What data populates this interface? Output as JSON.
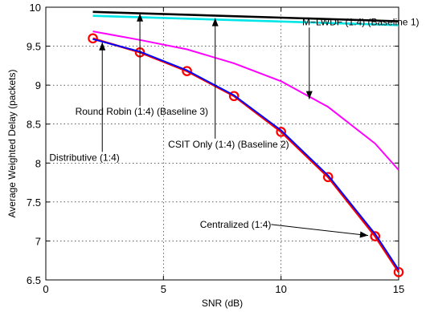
{
  "chart_data": {
    "type": "line",
    "title": "",
    "xlabel": "SNR (dB)",
    "ylabel": "Average Weighted  Delay (packets)",
    "xlim": [
      0,
      15
    ],
    "ylim": [
      6.5,
      10
    ],
    "xticks": [
      0,
      5,
      10,
      15
    ],
    "yticks": [
      6.5,
      7,
      7.5,
      8,
      8.5,
      9,
      9.5,
      10
    ],
    "grid": true,
    "series": [
      {
        "name": "M−LWDF (1:4) (Baseline 1)",
        "color": "#ff00ff",
        "x": [
          2,
          4,
          6,
          8,
          10,
          12,
          14,
          15
        ],
        "y": [
          9.69,
          9.58,
          9.46,
          9.28,
          9.05,
          8.72,
          8.25,
          7.91
        ]
      },
      {
        "name": "Round Robin (1:4) (Baseline 3)",
        "color": "#000000",
        "x": [
          2,
          15
        ],
        "y": [
          9.94,
          9.82
        ]
      },
      {
        "name": "CSIT Only (1:4) (Baseline 2)",
        "color": "#00e5e5",
        "x": [
          2,
          15
        ],
        "y": [
          9.89,
          9.77
        ]
      },
      {
        "name": "Centralized (1:4)",
        "color": "#ff0000",
        "marker": "circle",
        "x": [
          2,
          4,
          6,
          8,
          10,
          12,
          14,
          15
        ],
        "y": [
          9.6,
          9.42,
          9.18,
          8.86,
          8.4,
          7.82,
          7.06,
          6.6
        ]
      },
      {
        "name": "Distributive (1:4)",
        "color": "#0000ff",
        "x": [
          2,
          4,
          6,
          8,
          10,
          12,
          14,
          15
        ],
        "y": [
          9.59,
          9.43,
          9.19,
          8.87,
          8.42,
          7.84,
          7.09,
          6.63
        ]
      }
    ],
    "annotations": [
      {
        "text": "M−LWDF (1:4) (Baseline 1)",
        "label_at": [
          10.9,
          9.77
        ],
        "arrow_to": [
          11.2,
          8.82
        ]
      },
      {
        "text": "Round Robin (1:4) (Baseline 3)",
        "label_at": [
          1.25,
          8.62
        ],
        "arrow_to": [
          4.0,
          9.92
        ]
      },
      {
        "text": "CSIT Only (1:4) (Baseline 2)",
        "label_at": [
          5.2,
          8.2
        ],
        "arrow_to": [
          7.2,
          9.86
        ]
      },
      {
        "text": "Distributive (1:4)",
        "label_at": [
          0.15,
          8.03
        ],
        "arrow_to": [
          2.4,
          9.55
        ]
      },
      {
        "text": "Centralized (1:4)",
        "label_at": [
          6.55,
          7.17
        ],
        "arrow_to": [
          13.7,
          7.07
        ]
      }
    ]
  }
}
